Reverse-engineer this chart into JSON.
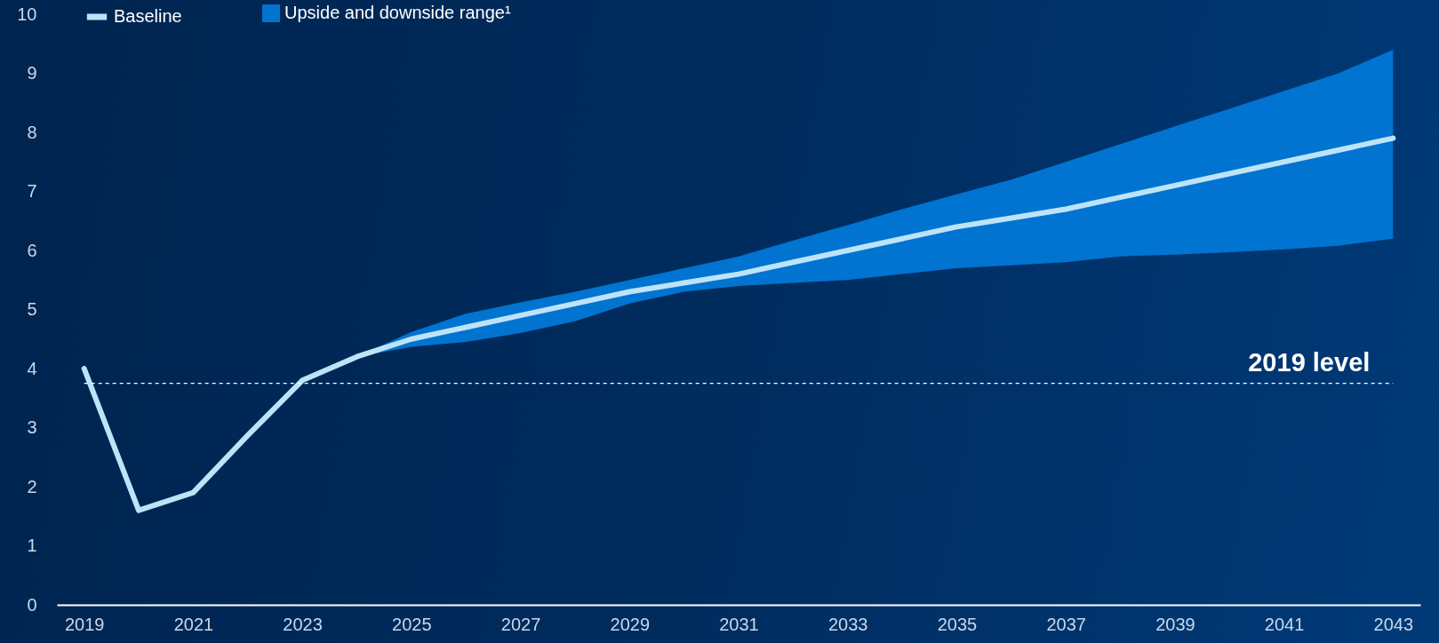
{
  "chart_data": {
    "type": "line",
    "x": [
      2019,
      2020,
      2021,
      2022,
      2023,
      2024,
      2025,
      2026,
      2027,
      2028,
      2029,
      2030,
      2031,
      2032,
      2033,
      2034,
      2035,
      2036,
      2037,
      2038,
      2039,
      2040,
      2041,
      2042,
      2043
    ],
    "series": [
      {
        "name": "Upside and downside range¹",
        "type": "area",
        "color": "#0074d0",
        "values": [
          null,
          null,
          null,
          null,
          null,
          null,
          null,
          null,
          null,
          null,
          null,
          null,
          null,
          null,
          null,
          null,
          null,
          null,
          null,
          null,
          null,
          null,
          null,
          null,
          null
        ],
        "lower": [
          null,
          null,
          null,
          null,
          3.8,
          4.2,
          4.37,
          4.45,
          4.6,
          4.8,
          5.1,
          5.3,
          5.4,
          5.45,
          5.5,
          5.6,
          5.7,
          5.75,
          5.8,
          5.9,
          5.93,
          5.97,
          6.02,
          6.08,
          6.2
        ],
        "upper": [
          null,
          null,
          null,
          null,
          3.8,
          4.2,
          4.62,
          4.93,
          5.12,
          5.3,
          5.5,
          5.7,
          5.9,
          6.17,
          6.43,
          6.7,
          6.95,
          7.2,
          7.5,
          7.8,
          8.1,
          8.4,
          8.7,
          9.0,
          9.4
        ]
      },
      {
        "name": "Baseline",
        "color": "#bde3f8",
        "values": [
          4.0,
          1.6,
          1.9,
          2.87,
          3.8,
          4.2,
          4.5,
          4.7,
          4.9,
          5.1,
          5.3,
          5.45,
          5.6,
          5.8,
          6.0,
          6.2,
          6.4,
          6.55,
          6.7,
          6.9,
          7.1,
          7.3,
          7.5,
          7.7,
          7.9
        ]
      }
    ],
    "xlim": [
      2018.5,
      2043.5
    ],
    "xticks": [
      2019,
      2021,
      2023,
      2025,
      2027,
      2029,
      2031,
      2033,
      2035,
      2037,
      2039,
      2041,
      2043
    ],
    "ylim": [
      0,
      10
    ],
    "yticks": [
      0,
      1,
      2,
      3,
      4,
      5,
      6,
      7,
      8,
      9,
      10
    ],
    "ref_lines": [
      {
        "axis": "y",
        "value": 3.75,
        "label": "2019 level",
        "color": "#ffffff",
        "line_style": "dashed"
      }
    ],
    "grid": false,
    "legend": "top left",
    "marker": "none"
  }
}
